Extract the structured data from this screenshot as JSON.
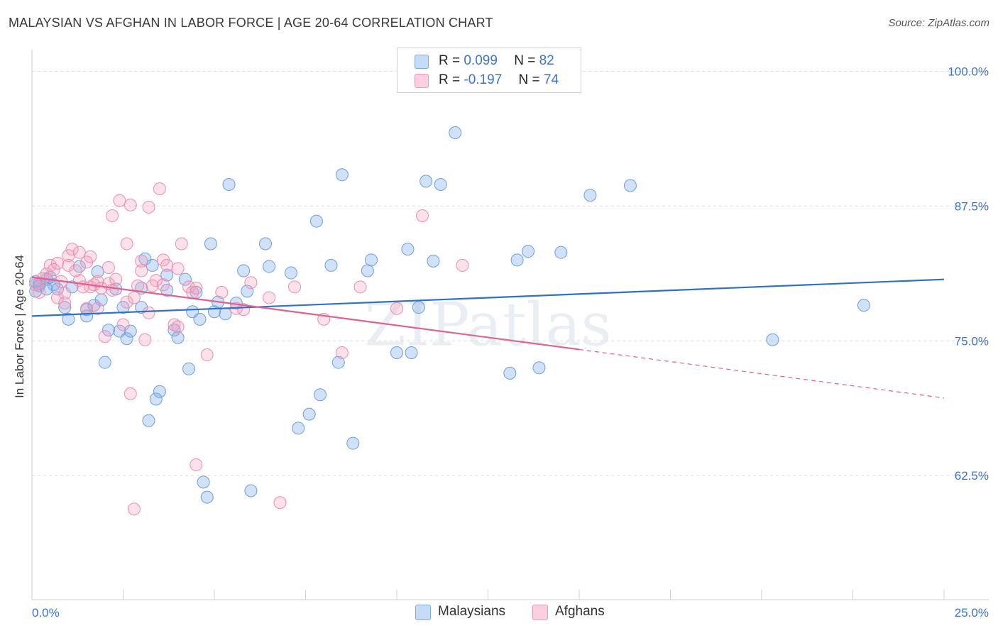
{
  "header": {
    "title": "MALAYSIAN VS AFGHAN IN LABOR FORCE | AGE 20-64 CORRELATION CHART",
    "source": "Source: ZipAtlas.com"
  },
  "legend_top": {
    "rows": [
      {
        "r_label": "R =",
        "r_value": "0.099",
        "n_label": "N =",
        "n_value": "82"
      },
      {
        "r_label": "R =",
        "r_value": "-0.197",
        "n_label": "N =",
        "n_value": "74"
      }
    ]
  },
  "chart_data": {
    "type": "scatter",
    "title": "MALAYSIAN VS AFGHAN IN LABOR FORCE | AGE 20-64 CORRELATION CHART",
    "xlabel": "",
    "ylabel": "In Labor Force | Age 20-64",
    "xlim": [
      0.0,
      25.0
    ],
    "ylim": [
      51.0,
      102.0
    ],
    "x_tick_labels": [
      "0.0%",
      "25.0%"
    ],
    "y_ticks": [
      62.5,
      75.0,
      87.5,
      100.0
    ],
    "y_tick_labels": [
      "62.5%",
      "75.0%",
      "87.5%",
      "100.0%"
    ],
    "grid": true,
    "legend_position": "bottom-center",
    "watermark": "ZIPatlas",
    "colors": {
      "malaysians": "#7aaae8",
      "afghans": "#f29ab8",
      "malaysians_line": "#2f6fd0",
      "afghans_line": "#e0608e",
      "axis_label": "#3b73cc"
    },
    "series": [
      {
        "name": "Malaysians",
        "color": "#7aaae8",
        "trend": {
          "x1": 0.0,
          "y1": 77.3,
          "x2": 25.0,
          "y2": 80.7
        },
        "points": [
          [
            0.1,
            79.6
          ],
          [
            0.1,
            80.5
          ],
          [
            0.2,
            80.3
          ],
          [
            0.4,
            80.7
          ],
          [
            0.5,
            80.9
          ],
          [
            0.6,
            80.2
          ],
          [
            0.7,
            79.8
          ],
          [
            0.9,
            78.1
          ],
          [
            1.0,
            77.0
          ],
          [
            1.1,
            80.0
          ],
          [
            1.3,
            81.9
          ],
          [
            1.5,
            77.9
          ],
          [
            1.5,
            77.3
          ],
          [
            1.7,
            78.3
          ],
          [
            1.8,
            81.4
          ],
          [
            1.9,
            78.8
          ],
          [
            2.0,
            73.0
          ],
          [
            2.1,
            76.0
          ],
          [
            2.3,
            79.8
          ],
          [
            2.4,
            75.9
          ],
          [
            2.5,
            78.1
          ],
          [
            2.6,
            75.2
          ],
          [
            2.7,
            75.9
          ],
          [
            3.0,
            79.9
          ],
          [
            3.0,
            78.1
          ],
          [
            3.1,
            82.6
          ],
          [
            3.2,
            67.6
          ],
          [
            3.3,
            82.0
          ],
          [
            3.4,
            69.6
          ],
          [
            3.5,
            70.3
          ],
          [
            3.7,
            81.1
          ],
          [
            3.7,
            79.7
          ],
          [
            3.9,
            76.0
          ],
          [
            4.0,
            75.3
          ],
          [
            4.2,
            80.7
          ],
          [
            4.3,
            72.4
          ],
          [
            4.4,
            77.7
          ],
          [
            4.5,
            79.5
          ],
          [
            4.6,
            77.0
          ],
          [
            4.7,
            61.9
          ],
          [
            4.8,
            60.5
          ],
          [
            4.9,
            84.0
          ],
          [
            5.0,
            77.7
          ],
          [
            5.1,
            78.6
          ],
          [
            5.3,
            77.5
          ],
          [
            5.4,
            89.5
          ],
          [
            5.6,
            78.5
          ],
          [
            5.8,
            81.5
          ],
          [
            5.9,
            79.6
          ],
          [
            6.0,
            61.1
          ],
          [
            6.4,
            84.0
          ],
          [
            6.5,
            81.9
          ],
          [
            7.1,
            81.3
          ],
          [
            7.3,
            66.9
          ],
          [
            7.6,
            68.2
          ],
          [
            7.8,
            86.1
          ],
          [
            7.9,
            70.0
          ],
          [
            8.2,
            82.0
          ],
          [
            8.4,
            73.0
          ],
          [
            8.5,
            90.4
          ],
          [
            8.8,
            65.5
          ],
          [
            9.2,
            81.5
          ],
          [
            9.3,
            82.5
          ],
          [
            10.0,
            73.9
          ],
          [
            10.3,
            83.5
          ],
          [
            10.4,
            73.9
          ],
          [
            10.6,
            78.1
          ],
          [
            10.8,
            89.8
          ],
          [
            11.0,
            82.4
          ],
          [
            11.2,
            89.5
          ],
          [
            11.6,
            94.3
          ],
          [
            13.1,
            72.0
          ],
          [
            13.3,
            82.5
          ],
          [
            13.6,
            83.3
          ],
          [
            13.9,
            72.5
          ],
          [
            14.5,
            83.2
          ],
          [
            15.3,
            88.5
          ],
          [
            16.4,
            89.4
          ],
          [
            20.3,
            75.1
          ],
          [
            22.8,
            78.3
          ],
          [
            0.2,
            80.1
          ],
          [
            0.4,
            79.8
          ]
        ]
      },
      {
        "name": "Afghans",
        "color": "#f29ab8",
        "trend": {
          "x1": 0.0,
          "y1": 80.9,
          "x2": 15.0,
          "y2": 74.2
        },
        "trend_dashed": {
          "x1": 15.0,
          "y1": 74.2,
          "x2": 25.0,
          "y2": 69.7
        },
        "points": [
          [
            0.1,
            80.2
          ],
          [
            0.2,
            79.5
          ],
          [
            0.3,
            80.8
          ],
          [
            0.4,
            81.2
          ],
          [
            0.5,
            82.0
          ],
          [
            0.6,
            81.6
          ],
          [
            0.7,
            82.2
          ],
          [
            0.7,
            79.0
          ],
          [
            0.8,
            80.5
          ],
          [
            0.9,
            79.4
          ],
          [
            1.0,
            82.9
          ],
          [
            1.0,
            82.0
          ],
          [
            1.1,
            83.5
          ],
          [
            1.2,
            81.5
          ],
          [
            1.3,
            80.6
          ],
          [
            1.3,
            83.2
          ],
          [
            1.4,
            80.0
          ],
          [
            1.5,
            78.0
          ],
          [
            1.5,
            82.3
          ],
          [
            1.6,
            82.8
          ],
          [
            1.7,
            80.2
          ],
          [
            1.8,
            80.5
          ],
          [
            1.8,
            78.0
          ],
          [
            1.9,
            79.9
          ],
          [
            2.0,
            75.4
          ],
          [
            2.1,
            80.3
          ],
          [
            2.1,
            81.8
          ],
          [
            2.2,
            86.6
          ],
          [
            2.2,
            79.7
          ],
          [
            2.3,
            80.7
          ],
          [
            2.4,
            88.0
          ],
          [
            2.5,
            76.5
          ],
          [
            2.6,
            84.0
          ],
          [
            2.6,
            78.6
          ],
          [
            2.7,
            70.1
          ],
          [
            2.7,
            87.6
          ],
          [
            2.8,
            59.4
          ],
          [
            2.9,
            80.1
          ],
          [
            3.0,
            82.4
          ],
          [
            3.0,
            81.5
          ],
          [
            3.1,
            75.1
          ],
          [
            3.2,
            77.6
          ],
          [
            3.2,
            87.4
          ],
          [
            3.3,
            80.1
          ],
          [
            3.4,
            80.6
          ],
          [
            3.5,
            89.1
          ],
          [
            3.6,
            80.2
          ],
          [
            3.6,
            82.5
          ],
          [
            3.7,
            82.0
          ],
          [
            3.9,
            76.5
          ],
          [
            4.0,
            76.3
          ],
          [
            4.0,
            81.7
          ],
          [
            4.1,
            84.0
          ],
          [
            4.3,
            80.0
          ],
          [
            4.4,
            79.5
          ],
          [
            4.5,
            63.5
          ],
          [
            4.5,
            79.9
          ],
          [
            4.8,
            73.7
          ],
          [
            5.2,
            79.5
          ],
          [
            5.6,
            78.0
          ],
          [
            5.8,
            77.9
          ],
          [
            6.0,
            80.4
          ],
          [
            6.5,
            79.0
          ],
          [
            6.8,
            60.0
          ],
          [
            7.2,
            80.0
          ],
          [
            8.0,
            77.0
          ],
          [
            8.5,
            73.9
          ],
          [
            9.0,
            80.0
          ],
          [
            10.0,
            78.0
          ],
          [
            10.7,
            86.6
          ],
          [
            11.8,
            82.0
          ],
          [
            1.6,
            80.0
          ],
          [
            2.8,
            79.0
          ],
          [
            0.9,
            78.5
          ]
        ]
      }
    ]
  },
  "bottom_legend": {
    "items": [
      {
        "label": "Malaysians"
      },
      {
        "label": "Afghans"
      }
    ]
  }
}
